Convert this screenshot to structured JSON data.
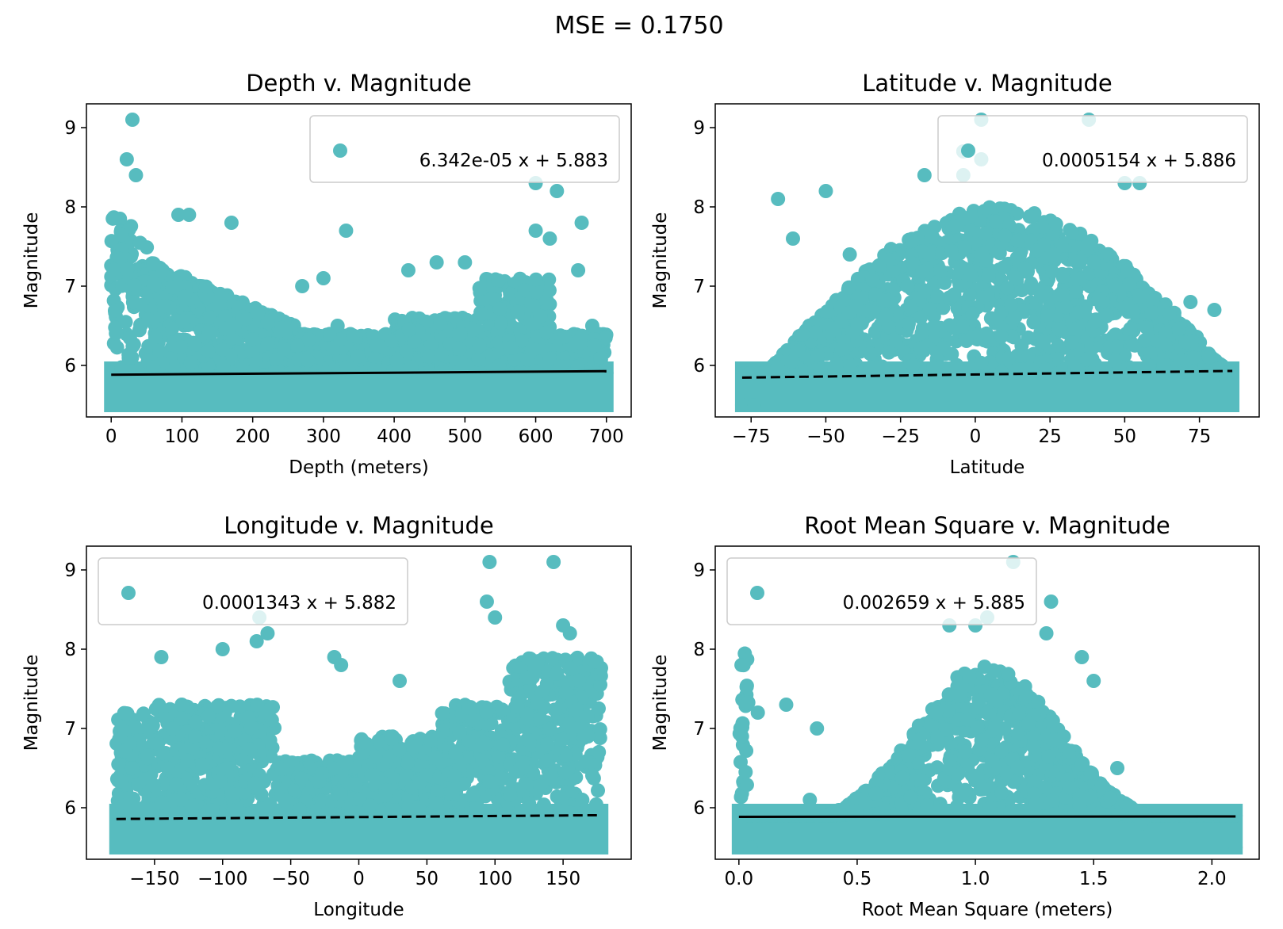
{
  "figure_title": "MSE = 0.1750",
  "colors": {
    "point": "#57BCBF",
    "fit_line": "#000000",
    "axes": "#000000"
  },
  "chart_data": [
    {
      "type": "scatter",
      "title": "Depth v. Magnitude",
      "xlabel": "Depth (meters)",
      "ylabel": "Magnitude",
      "xlim": [
        -35,
        735
      ],
      "ylim": [
        5.35,
        9.3
      ],
      "xticks": [
        0,
        100,
        200,
        300,
        400,
        500,
        600,
        700
      ],
      "xtick_labels": [
        "0",
        "100",
        "200",
        "300",
        "400",
        "500",
        "600",
        "700"
      ],
      "yticks": [
        6,
        7,
        8,
        9
      ],
      "ytick_labels": [
        "6",
        "7",
        "8",
        "9"
      ],
      "legend": {
        "position": "upper-right",
        "label": "6.342e-05 x + 5.883"
      },
      "fit": {
        "slope": 6.342e-05,
        "intercept": 5.883,
        "x_range": [
          0,
          700
        ],
        "style": "solid"
      },
      "notable_points": [
        [
          30,
          9.1
        ],
        [
          22,
          8.6
        ],
        [
          35,
          8.4
        ],
        [
          600,
          8.3
        ],
        [
          630,
          8.2
        ],
        [
          665,
          7.8
        ],
        [
          170,
          7.8
        ],
        [
          332,
          7.7
        ],
        [
          600,
          7.7
        ],
        [
          620,
          7.6
        ],
        [
          680,
          6.5
        ],
        [
          660,
          7.2
        ],
        [
          420,
          7.2
        ],
        [
          460,
          7.3
        ],
        [
          500,
          7.3
        ],
        [
          300,
          7.1
        ],
        [
          270,
          7.0
        ],
        [
          320,
          6.5
        ],
        [
          95,
          7.9
        ],
        [
          110,
          7.9
        ]
      ]
    },
    {
      "type": "scatter",
      "title": "Latitude v. Magnitude",
      "xlabel": "Latitude",
      "ylabel": "Magnitude",
      "xlim": [
        -87,
        95
      ],
      "ylim": [
        5.35,
        9.3
      ],
      "xticks": [
        -75,
        -50,
        -25,
        0,
        25,
        50,
        75
      ],
      "xtick_labels": [
        "−75",
        "−50",
        "−25",
        "0",
        "25",
        "50",
        "75"
      ],
      "yticks": [
        6,
        7,
        8,
        9
      ],
      "ytick_labels": [
        "6",
        "7",
        "8",
        "9"
      ],
      "legend": {
        "position": "upper-right",
        "label": "0.0005154 x + 5.886"
      },
      "fit": {
        "slope": 0.0005154,
        "intercept": 5.886,
        "x_range": [
          -78,
          86
        ],
        "style": "dashed"
      },
      "notable_points": [
        [
          2,
          9.1
        ],
        [
          38,
          9.1
        ],
        [
          -4,
          8.7
        ],
        [
          2,
          8.6
        ],
        [
          -17,
          8.4
        ],
        [
          -4,
          8.4
        ],
        [
          -50,
          8.2
        ],
        [
          -66,
          8.1
        ],
        [
          50,
          8.3
        ],
        [
          55,
          8.3
        ],
        [
          -78,
          5.5
        ],
        [
          -74,
          5.5
        ],
        [
          72,
          6.8
        ],
        [
          80,
          6.7
        ],
        [
          -42,
          7.4
        ],
        [
          -61,
          7.6
        ],
        [
          84,
          5.8
        ]
      ]
    },
    {
      "type": "scatter",
      "title": "Longitude v. Magnitude",
      "xlabel": "Longitude",
      "ylabel": "Magnitude",
      "xlim": [
        -200,
        200
      ],
      "ylim": [
        5.35,
        9.3
      ],
      "xticks": [
        -150,
        -100,
        -50,
        0,
        50,
        100,
        150
      ],
      "xtick_labels": [
        "−150",
        "−100",
        "−50",
        "0",
        "50",
        "100",
        "150"
      ],
      "yticks": [
        6,
        7,
        8,
        9
      ],
      "ytick_labels": [
        "6",
        "7",
        "8",
        "9"
      ],
      "legend": {
        "position": "upper-left",
        "label": "0.0001343 x + 5.882"
      },
      "fit": {
        "slope": 0.0001343,
        "intercept": 5.882,
        "x_range": [
          -178,
          178
        ],
        "style": "dashed"
      },
      "notable_points": [
        [
          96,
          9.1
        ],
        [
          143,
          9.1
        ],
        [
          94,
          8.6
        ],
        [
          100,
          8.4
        ],
        [
          -73,
          8.4
        ],
        [
          -67,
          8.2
        ],
        [
          -75,
          8.1
        ],
        [
          -145,
          7.9
        ],
        [
          -18,
          7.9
        ],
        [
          -13,
          7.8
        ],
        [
          -100,
          8.0
        ],
        [
          -130,
          7.3
        ],
        [
          30,
          7.6
        ],
        [
          150,
          8.3
        ],
        [
          155,
          8.2
        ]
      ]
    },
    {
      "type": "scatter",
      "title": "Root Mean Square v. Magnitude",
      "xlabel": "Root Mean Square (meters)",
      "ylabel": "Magnitude",
      "xlim": [
        -0.1,
        2.2
      ],
      "ylim": [
        5.35,
        9.3
      ],
      "xticks": [
        0.0,
        0.5,
        1.0,
        1.5,
        2.0
      ],
      "xtick_labels": [
        "0.0",
        "0.5",
        "1.0",
        "1.5",
        "2.0"
      ],
      "yticks": [
        6,
        7,
        8,
        9
      ],
      "ytick_labels": [
        "6",
        "7",
        "8",
        "9"
      ],
      "legend": {
        "position": "upper-left",
        "label": "0.002659 x + 5.885"
      },
      "fit": {
        "slope": 0.002659,
        "intercept": 5.885,
        "x_range": [
          0,
          2.1
        ],
        "style": "solid"
      },
      "notable_points": [
        [
          1.16,
          9.1
        ],
        [
          1.05,
          8.4
        ],
        [
          1.0,
          8.3
        ],
        [
          0.89,
          8.3
        ],
        [
          1.32,
          8.6
        ],
        [
          1.3,
          8.2
        ],
        [
          1.45,
          7.9
        ],
        [
          1.5,
          7.6
        ],
        [
          1.6,
          6.5
        ],
        [
          1.7,
          5.8
        ],
        [
          2.1,
          5.5
        ],
        [
          0.2,
          7.3
        ],
        [
          0.33,
          7.0
        ],
        [
          0.08,
          7.2
        ],
        [
          0.05,
          5.5
        ],
        [
          0.3,
          6.1
        ]
      ]
    }
  ]
}
